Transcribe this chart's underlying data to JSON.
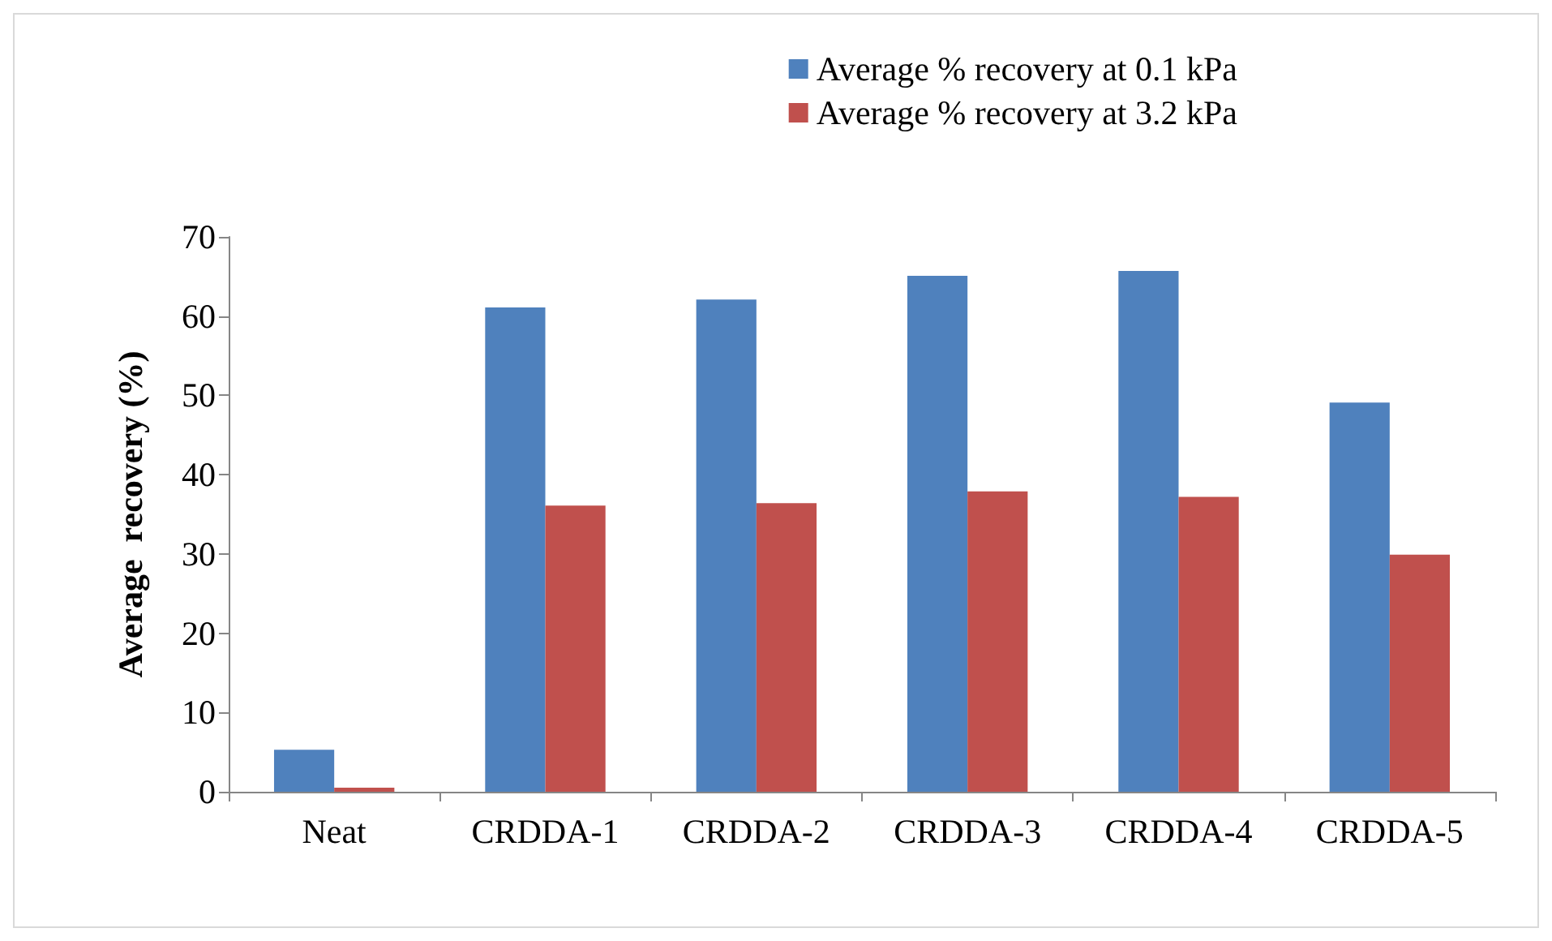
{
  "chart_data": {
    "type": "bar",
    "ylabel": "Average  recovery (%)",
    "categories": [
      "Neat",
      "CRDDA-1",
      "CRDDA-2",
      "CRDDA-3",
      "CRDDA-4",
      "CRDDA-5"
    ],
    "series": [
      {
        "name": "Average % recovery at 0.1 kPa",
        "color": "#4f81bd",
        "values": [
          5.3,
          61.1,
          62.1,
          65.1,
          65.7,
          49.1
        ]
      },
      {
        "name": "Average % recovery at 3.2 kPa",
        "color": "#c0504d",
        "values": [
          0.5,
          36.1,
          36.4,
          37.9,
          37.2,
          29.9
        ]
      }
    ],
    "ylim": [
      0,
      70
    ],
    "yticks": [
      0,
      10,
      20,
      30,
      40,
      50,
      60,
      70
    ],
    "grid": false,
    "legend": "top right"
  }
}
